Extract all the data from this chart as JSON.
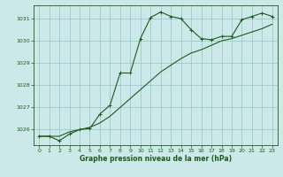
{
  "title": "Graphe pression niveau de la mer (hPa)",
  "bg_color": "#cce8e8",
  "grid_color": "#99cccc",
  "line_color": "#1a5c1a",
  "xlim": [
    -0.5,
    23.5
  ],
  "ylim": [
    1025.3,
    1031.6
  ],
  "xticks": [
    0,
    1,
    2,
    3,
    4,
    5,
    6,
    7,
    8,
    9,
    10,
    11,
    12,
    13,
    14,
    15,
    16,
    17,
    18,
    19,
    20,
    21,
    22,
    23
  ],
  "yticks": [
    1026,
    1027,
    1028,
    1029,
    1030,
    1031
  ],
  "series1": {
    "x": [
      0,
      1,
      2,
      3,
      4,
      5,
      6,
      7,
      8,
      9,
      10,
      11,
      12,
      13,
      14,
      15,
      16,
      17,
      18,
      19,
      20,
      21,
      22,
      23
    ],
    "y": [
      1025.7,
      1025.7,
      1025.5,
      1025.8,
      1026.0,
      1026.05,
      1026.7,
      1027.1,
      1028.55,
      1028.55,
      1030.1,
      1031.05,
      1031.3,
      1031.1,
      1031.0,
      1030.5,
      1030.1,
      1030.05,
      1030.2,
      1030.2,
      1030.95,
      1031.1,
      1031.25,
      1031.1
    ]
  },
  "series2": {
    "x": [
      0,
      1,
      2,
      3,
      4,
      5,
      6,
      7,
      8,
      9,
      10,
      11,
      12,
      13,
      14,
      15,
      16,
      17,
      18,
      19,
      20,
      21,
      22,
      23
    ],
    "y": [
      1025.7,
      1025.7,
      1025.7,
      1025.9,
      1026.0,
      1026.1,
      1026.3,
      1026.6,
      1027.0,
      1027.4,
      1027.8,
      1028.2,
      1028.6,
      1028.9,
      1029.2,
      1029.45,
      1029.6,
      1029.8,
      1030.0,
      1030.1,
      1030.25,
      1030.4,
      1030.55,
      1030.75
    ]
  }
}
